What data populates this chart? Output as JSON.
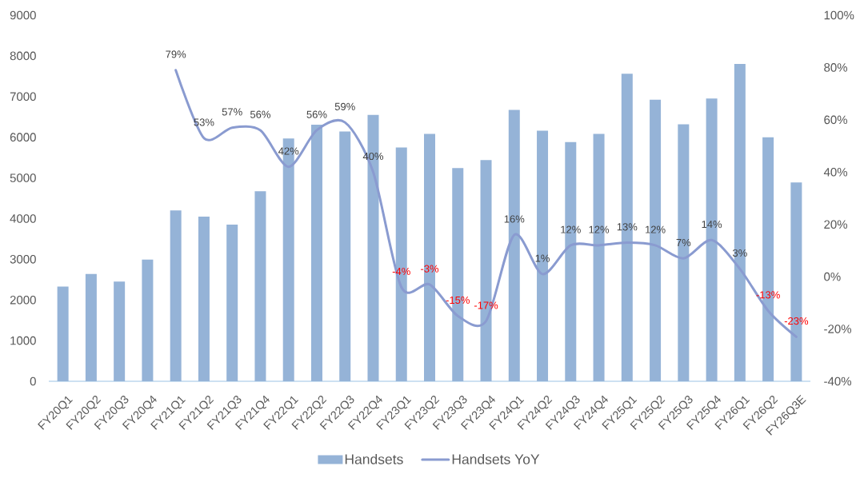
{
  "chart_data": {
    "type": "bar",
    "categories": [
      "FY20Q1",
      "FY20Q2",
      "FY20Q3",
      "FY20Q4",
      "FY21Q1",
      "FY21Q2",
      "FY21Q3",
      "FY21Q4",
      "FY22Q1",
      "FY22Q2",
      "FY22Q3",
      "FY22Q4",
      "FY23Q1",
      "FY23Q2",
      "FY23Q3",
      "FY23Q4",
      "FY24Q1",
      "FY24Q2",
      "FY24Q3",
      "FY24Q4",
      "FY25Q1",
      "FY25Q2",
      "FY25Q3",
      "FY25Q4",
      "FY26Q1",
      "FY26Q2",
      "FY26Q3E"
    ],
    "series": [
      {
        "name": "Handsets",
        "color": "#95B3D7",
        "values": [
          2330,
          2640,
          2450,
          2990,
          4200,
          4050,
          3850,
          4670,
          5970,
          6310,
          6140,
          6550,
          5750,
          6080,
          5240,
          5440,
          6670,
          6160,
          5880,
          6080,
          7560,
          6920,
          6320,
          6950,
          7800,
          6000,
          4890
        ]
      },
      {
        "name": "Handsets YoY",
        "type": "line",
        "axis": "y2",
        "color": "#8A9BD0",
        "values": [
          null,
          null,
          null,
          null,
          79,
          53,
          57,
          56,
          42,
          56,
          59,
          40,
          -4,
          -3,
          -15,
          -17,
          16,
          1,
          12,
          12,
          13,
          12,
          7,
          14,
          3,
          -13,
          -23
        ],
        "value_labels": [
          null,
          null,
          null,
          null,
          "79%",
          "53%",
          "57%",
          "56%",
          "42%",
          "56%",
          "59%",
          "40%",
          "-4%",
          "-3%",
          "-15%",
          "-17%",
          "16%",
          "1%",
          "12%",
          "12%",
          "13%",
          "12%",
          "7%",
          "14%",
          "3%",
          "-13%",
          "-23%"
        ]
      }
    ],
    "ylim": [
      0,
      9000
    ],
    "yticks": [
      0,
      1000,
      2000,
      3000,
      4000,
      5000,
      6000,
      7000,
      8000,
      9000
    ],
    "y2lim": [
      -40,
      100
    ],
    "y2ticks": [
      {
        "value": -40,
        "label": "-40%"
      },
      {
        "value": -20,
        "label": "-20%"
      },
      {
        "value": 0,
        "label": "0%"
      },
      {
        "value": 20,
        "label": "20%"
      },
      {
        "value": 40,
        "label": "40%"
      },
      {
        "value": 60,
        "label": "60%"
      },
      {
        "value": 80,
        "label": "80%"
      },
      {
        "value": 100,
        "label": "100%"
      }
    ],
    "legend": "bottom",
    "marker": "none",
    "line_style": "solid"
  }
}
